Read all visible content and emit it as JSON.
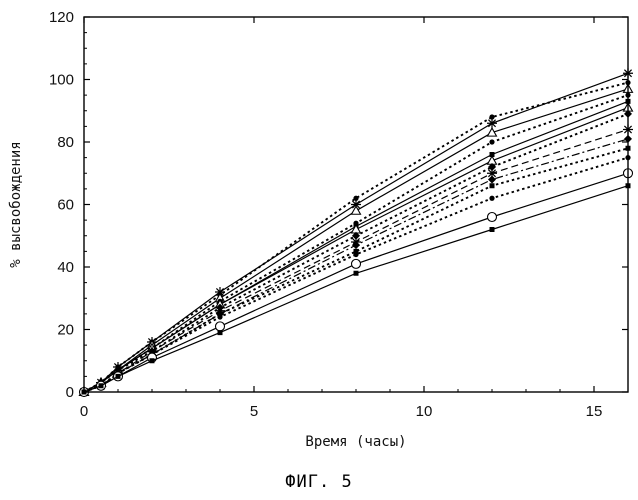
{
  "figure_caption": "ФИГ. 5",
  "chart_data": {
    "type": "line",
    "xlabel": "Время (часы)",
    "ylabel": "% высвобождения",
    "xlim": [
      0,
      16
    ],
    "ylim": [
      0,
      120
    ],
    "xticks": [
      0,
      5,
      10,
      15
    ],
    "yticks": [
      0,
      20,
      40,
      60,
      80,
      100,
      120
    ],
    "grid": false,
    "series": [
      {
        "marker": "star",
        "dash": "solid",
        "x": [
          0,
          0.5,
          1,
          2,
          4,
          8,
          12,
          16
        ],
        "y": [
          0,
          3,
          8,
          16,
          32,
          60,
          86,
          102
        ]
      },
      {
        "marker": "dot",
        "dash": "dotted",
        "x": [
          0,
          0.5,
          1,
          2,
          4,
          8,
          12,
          16
        ],
        "y": [
          0,
          3,
          8,
          16,
          31,
          62,
          88,
          99
        ]
      },
      {
        "marker": "triangle",
        "dash": "solid",
        "x": [
          0,
          0.5,
          1,
          2,
          4,
          8,
          12,
          16
        ],
        "y": [
          0,
          3,
          7,
          15,
          30,
          58,
          83,
          97
        ]
      },
      {
        "marker": "dot",
        "dash": "dotted",
        "x": [
          0,
          0.5,
          1,
          2,
          4,
          8,
          12,
          16
        ],
        "y": [
          0,
          3,
          7,
          14,
          29,
          54,
          80,
          95
        ]
      },
      {
        "marker": "square",
        "dash": "solid",
        "x": [
          0,
          0.5,
          1,
          2,
          4,
          8,
          12,
          16
        ],
        "y": [
          0,
          3,
          7,
          14,
          28,
          53,
          76,
          93
        ]
      },
      {
        "marker": "triangle",
        "dash": "solid",
        "x": [
          0,
          0.5,
          1,
          2,
          4,
          8,
          12,
          16
        ],
        "y": [
          0,
          3,
          7,
          14,
          28,
          52,
          74,
          91
        ]
      },
      {
        "marker": "diamond",
        "dash": "dotted",
        "x": [
          0,
          0.5,
          1,
          2,
          4,
          8,
          12,
          16
        ],
        "y": [
          0,
          3,
          7,
          13,
          27,
          50,
          72,
          89
        ]
      },
      {
        "marker": "star",
        "dash": "dashed",
        "x": [
          0,
          0.5,
          1,
          2,
          4,
          8,
          12,
          16
        ],
        "y": [
          0,
          2,
          6,
          13,
          26,
          48,
          70,
          84
        ]
      },
      {
        "marker": "diamond",
        "dash": "dashdot",
        "x": [
          0,
          0.5,
          1,
          2,
          4,
          8,
          12,
          16
        ],
        "y": [
          0,
          2,
          6,
          12,
          25,
          47,
          68,
          81
        ]
      },
      {
        "marker": "square",
        "dash": "dotted",
        "x": [
          0,
          0.5,
          1,
          2,
          4,
          8,
          12,
          16
        ],
        "y": [
          0,
          2,
          6,
          12,
          25,
          45,
          66,
          78
        ]
      },
      {
        "marker": "dot",
        "dash": "dotted",
        "x": [
          0,
          0.5,
          1,
          2,
          4,
          8,
          12,
          16
        ],
        "y": [
          0,
          2,
          6,
          12,
          24,
          44,
          62,
          75
        ]
      },
      {
        "marker": "circle",
        "dash": "solid",
        "x": [
          0,
          0.5,
          1,
          2,
          4,
          8,
          12,
          16
        ],
        "y": [
          0,
          2,
          5,
          11,
          21,
          41,
          56,
          70
        ]
      },
      {
        "marker": "square",
        "dash": "solid",
        "x": [
          0,
          0.5,
          1,
          2,
          4,
          8,
          12,
          16
        ],
        "y": [
          0,
          2,
          5,
          10,
          19,
          38,
          52,
          66
        ]
      }
    ]
  }
}
